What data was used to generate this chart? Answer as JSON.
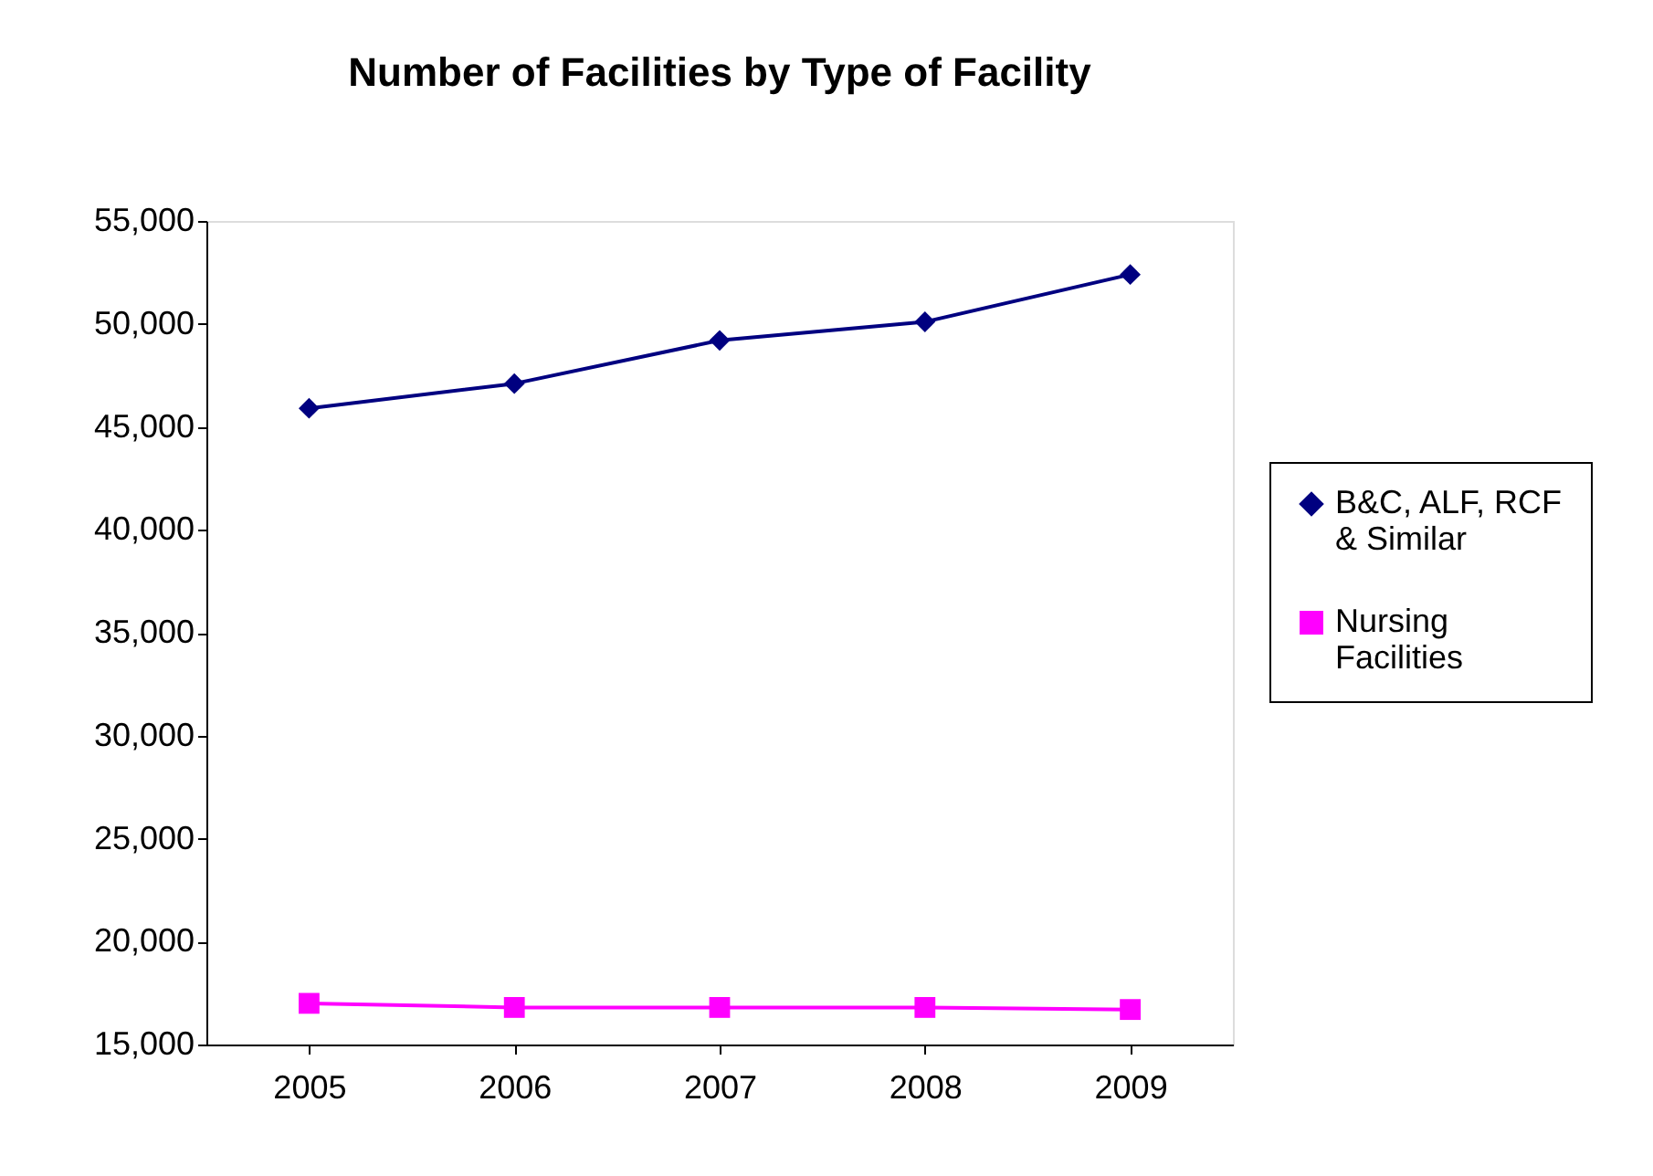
{
  "chart_data": {
    "type": "line",
    "title": "Number of Facilities by Type of Facility",
    "categories": [
      "2005",
      "2006",
      "2007",
      "2008",
      "2009"
    ],
    "series": [
      {
        "name": "B&C, ALF, RCF & Similar",
        "color": "#000080",
        "marker": "diamond",
        "values": [
          45900,
          47100,
          49200,
          50100,
          52400
        ]
      },
      {
        "name": "Nursing Facilities",
        "color": "#ff00ff",
        "marker": "square",
        "values": [
          17000,
          16800,
          16800,
          16800,
          16700
        ]
      }
    ],
    "ylim": [
      15000,
      55000
    ],
    "yticks": [
      {
        "value": 15000,
        "label": "15,000"
      },
      {
        "value": 20000,
        "label": "20,000"
      },
      {
        "value": 25000,
        "label": "25,000"
      },
      {
        "value": 30000,
        "label": "30,000"
      },
      {
        "value": 35000,
        "label": "35,000"
      },
      {
        "value": 40000,
        "label": "40,000"
      },
      {
        "value": 45000,
        "label": "45,000"
      },
      {
        "value": 50000,
        "label": "50,000"
      },
      {
        "value": 55000,
        "label": "55,000"
      }
    ],
    "grid": false,
    "legend": "right"
  }
}
